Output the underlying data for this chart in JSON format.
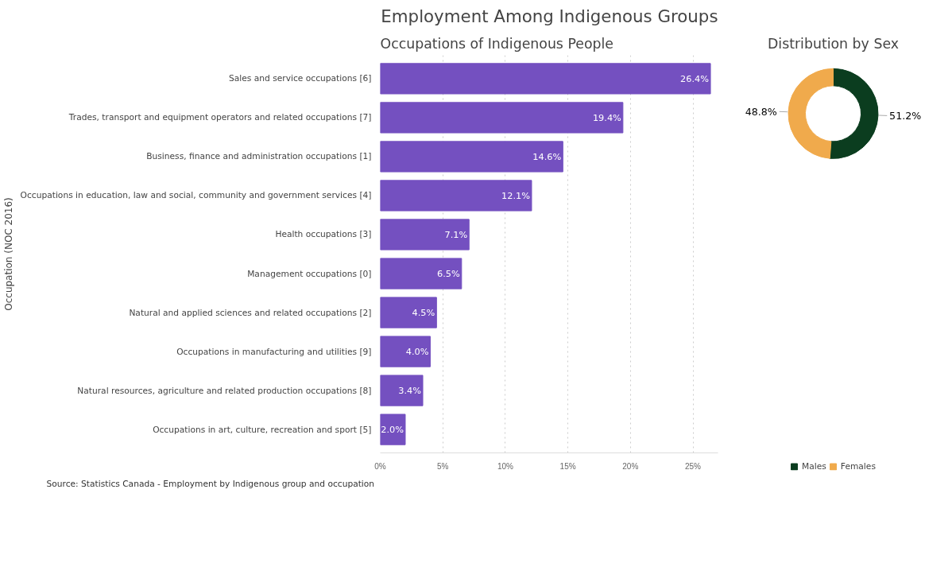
{
  "chart_data": [
    {
      "type": "bar",
      "orientation": "horizontal",
      "title": "Employment Among Indigenous Groups",
      "subtitle": "Occupations of Indigenous People",
      "ylabel": "Occupation (NOC 2016)",
      "categories": [
        "Sales and service occupations [6]",
        "Trades, transport and equipment operators and related occupations [7]",
        "Business, finance and administration occupations [1]",
        "Occupations in education, law and social, community and government services [4]",
        "Health occupations [3]",
        "Management occupations [0]",
        "Natural and applied sciences and related occupations [2]",
        "Occupations in manufacturing and utilities [9]",
        "Natural resources, agriculture and related production occupations [8]",
        "Occupations in art, culture, recreation and sport [5]"
      ],
      "values": [
        26.4,
        19.4,
        14.6,
        12.1,
        7.1,
        6.5,
        4.5,
        4.0,
        3.4,
        2.0
      ],
      "value_labels": [
        "26.4%",
        "19.4%",
        "14.6%",
        "12.1%",
        "7.1%",
        "6.5%",
        "4.5%",
        "4.0%",
        "3.4%",
        "2.0%"
      ],
      "color": "#7450c0",
      "xlim": [
        0,
        27
      ],
      "xticks": [
        {
          "value": 0,
          "label": "0%"
        },
        {
          "value": 5,
          "label": "5%"
        },
        {
          "value": 10,
          "label": "10%"
        },
        {
          "value": 15,
          "label": "15%"
        },
        {
          "value": 20,
          "label": "20%"
        },
        {
          "value": 25,
          "label": "25%"
        }
      ],
      "grid": "x",
      "annotations": [
        "Source: Statistics Canada - Employment by Indigenous group and occupation"
      ]
    },
    {
      "type": "donut",
      "title": "Distribution by Sex",
      "categories": [
        "Males",
        "Females"
      ],
      "values": [
        51.2,
        48.8
      ],
      "colors": [
        "#0b3d1f",
        "#f0aa4c"
      ],
      "value_labels": [
        "51.2%",
        "48.8%"
      ],
      "legend": "bottom"
    }
  ]
}
